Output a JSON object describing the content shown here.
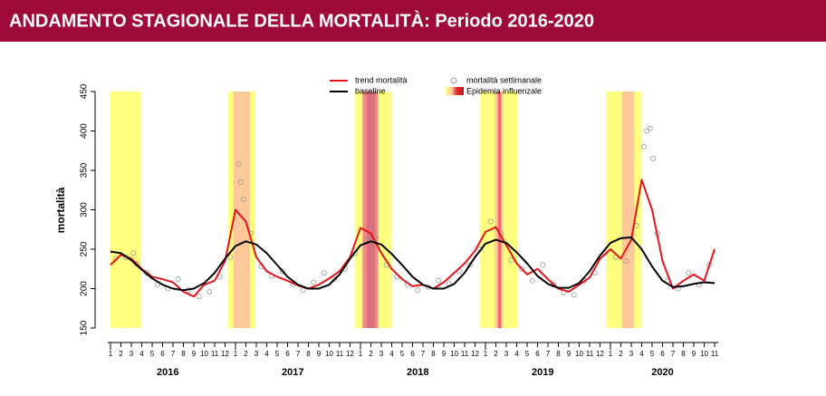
{
  "chart_data": {
    "type": "line",
    "title": "ANDAMENTO STAGIONALE DELLA MORTALITÀ: Periodo 2016-2020",
    "ylabel": "mortalità",
    "ylim": [
      150,
      450
    ],
    "yticks": [
      150,
      200,
      250,
      300,
      350,
      400,
      450
    ],
    "xlim": [
      0,
      58
    ],
    "years": [
      "2016",
      "2017",
      "2018",
      "2019",
      "2020"
    ],
    "months": [
      [
        1,
        2,
        3,
        4,
        5,
        6,
        7,
        8,
        9,
        10,
        11,
        12
      ],
      [
        1,
        2,
        3,
        4,
        5,
        6,
        7,
        8,
        9,
        10,
        11,
        12
      ],
      [
        1,
        2,
        3,
        4,
        5,
        6,
        7,
        8,
        9,
        10,
        11,
        12
      ],
      [
        1,
        2,
        3,
        4,
        5,
        6,
        7,
        8,
        9,
        10,
        11,
        12
      ],
      [
        1,
        2,
        3,
        4,
        5,
        6,
        7,
        8,
        9,
        10,
        11
      ]
    ],
    "x": [
      0,
      1,
      2,
      3,
      4,
      5,
      6,
      7,
      8,
      9,
      10,
      11,
      12,
      13,
      14,
      15,
      16,
      17,
      18,
      19,
      20,
      21,
      22,
      23,
      24,
      25,
      26,
      27,
      28,
      29,
      30,
      31,
      32,
      33,
      34,
      35,
      36,
      37,
      38,
      39,
      40,
      41,
      42,
      43,
      44,
      45,
      46,
      47,
      48,
      49,
      50,
      51,
      52,
      53,
      54,
      55,
      56,
      57,
      58
    ],
    "series": [
      {
        "name": "trend mortalità",
        "color": "#e8141c",
        "values": [
          230,
          243,
          238,
          225,
          215,
          212,
          208,
          196,
          190,
          205,
          210,
          235,
          300,
          285,
          240,
          222,
          215,
          210,
          204,
          200,
          205,
          213,
          222,
          240,
          277,
          270,
          245,
          225,
          212,
          203,
          205,
          200,
          208,
          220,
          232,
          248,
          272,
          278,
          255,
          232,
          218,
          225,
          212,
          200,
          196,
          205,
          214,
          238,
          250,
          238,
          262,
          338,
          300,
          235,
          200,
          210,
          218,
          210,
          250
        ]
      },
      {
        "name": "baseline",
        "color": "#000000",
        "values": [
          247,
          245,
          236,
          224,
          213,
          205,
          200,
          198,
          200,
          207,
          220,
          238,
          254,
          260,
          256,
          245,
          230,
          215,
          205,
          200,
          200,
          205,
          218,
          238,
          255,
          260,
          256,
          244,
          230,
          215,
          205,
          200,
          200,
          206,
          220,
          240,
          257,
          262,
          258,
          246,
          232,
          216,
          206,
          201,
          201,
          207,
          222,
          242,
          258,
          264,
          265,
          250,
          228,
          210,
          202,
          203,
          206,
          208,
          207
        ]
      }
    ],
    "scatter": {
      "name": "mortalità settimanale",
      "color": "#999999",
      "x": [
        0.5,
        1.5,
        2.5,
        3.5,
        4.5,
        5.5,
        6.5,
        7.5,
        8.5,
        9.5,
        10.5,
        11.5,
        12.5,
        13.5,
        14.5,
        15.5,
        16.5,
        17.5,
        18.5,
        19.5,
        20.5,
        21.5,
        22.5,
        23.5,
        24.5,
        25.5,
        26.5,
        27.5,
        28.5,
        29.5,
        30.5,
        31.5,
        32.5,
        33.5,
        34.5,
        35.5,
        36.5,
        37.5,
        38.5,
        39.5,
        40.5,
        41.5,
        42.5,
        43.5,
        44.5,
        45.5,
        46.5,
        47.5,
        48.5,
        49.5,
        50.5,
        51.5,
        52.5,
        53.5,
        54.5,
        55.5,
        56.5,
        57.5,
        12.3,
        12.8,
        51.2,
        51.8,
        52.1,
        2.2
      ],
      "values": [
        238,
        240,
        232,
        220,
        205,
        200,
        212,
        198,
        190,
        196,
        215,
        240,
        335,
        270,
        228,
        216,
        222,
        205,
        198,
        208,
        220,
        212,
        225,
        245,
        262,
        265,
        230,
        215,
        205,
        198,
        202,
        210,
        206,
        222,
        230,
        250,
        285,
        270,
        236,
        225,
        210,
        230,
        205,
        195,
        192,
        210,
        220,
        245,
        240,
        235,
        280,
        400,
        270,
        210,
        200,
        220,
        205,
        230,
        358,
        313,
        380,
        403,
        365,
        245
      ]
    },
    "bands_name": "Epidemia influenzale",
    "bands": [
      {
        "start": 0,
        "end": 2.96,
        "color": "#ffff80"
      },
      {
        "start": 11.3,
        "end": 13.9,
        "color": "#ffff80"
      },
      {
        "start": 11.8,
        "end": 13.4,
        "color": "#ffc89a"
      },
      {
        "start": 23.5,
        "end": 27.0,
        "color": "#ffff80"
      },
      {
        "start": 24.2,
        "end": 25.7,
        "color": "#f08a8a"
      },
      {
        "start": 24.6,
        "end": 25.4,
        "color": "#d8707e"
      },
      {
        "start": 35.5,
        "end": 39.1,
        "color": "#ffff80"
      },
      {
        "start": 36.9,
        "end": 37.7,
        "color": "#ffc89a"
      },
      {
        "start": 37.2,
        "end": 37.5,
        "color": "#f06a6a"
      },
      {
        "start": 47.6,
        "end": 51.0,
        "color": "#ffff80"
      },
      {
        "start": 49.1,
        "end": 50.3,
        "color": "#ffc89a"
      }
    ]
  }
}
